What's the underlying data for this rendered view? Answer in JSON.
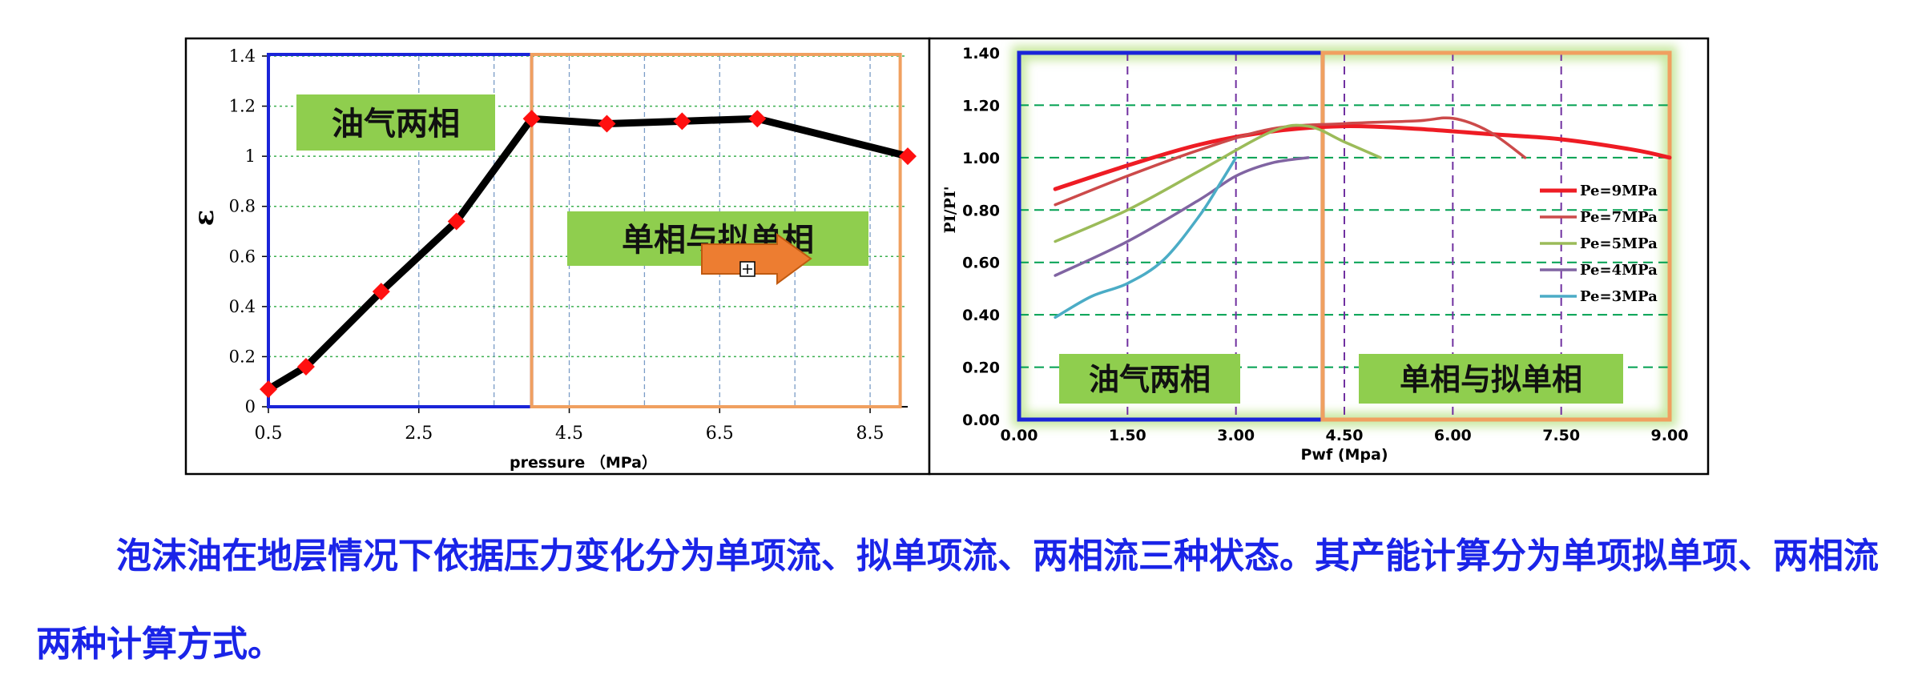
{
  "caption": "泡沫油在地层情况下依据压力变化分为单项流、拟单项流、两相流三种状态。其产能计算分为单项拟单项、两相流两种计算方式。",
  "chart_data": [
    {
      "type": "line",
      "title": "",
      "xlabel": "pressure （MPa）",
      "ylabel": "ε",
      "xlim": [
        0.5,
        9.0
      ],
      "ylim": [
        0,
        1.4
      ],
      "xticks": [
        "0.5",
        "2.5",
        "4.5",
        "6.5",
        "8.5"
      ],
      "yticks": [
        "0",
        "0.2",
        "0.4",
        "0.6",
        "0.8",
        "1",
        "1.2",
        "1.4"
      ],
      "grid": true,
      "series": [
        {
          "x": [
            0.5,
            1.0,
            2.0,
            3.0,
            4.0,
            5.0,
            6.0,
            7.0,
            9.0
          ],
          "y": [
            0.07,
            0.16,
            0.46,
            0.74,
            1.15,
            1.13,
            1.14,
            1.15,
            1.0
          ]
        }
      ],
      "regions": [
        {
          "label": "油气两相",
          "x_from": 0.5,
          "x_to": 4.0,
          "color": "#1a24d8"
        },
        {
          "label": "单相与拟单相",
          "x_from": 4.0,
          "x_to": 8.9,
          "color": "#f0a060"
        }
      ],
      "colors": {
        "line": "#000000",
        "marker": "#ff1010",
        "label_bg": "#8fce4e"
      },
      "arrow_icon": "right-arrow-icon"
    },
    {
      "type": "line",
      "title": "",
      "xlabel": "Pwf (Mpa)",
      "ylabel": "PI/PI'",
      "xlim": [
        0,
        9.0
      ],
      "ylim": [
        0,
        1.4
      ],
      "xticks": [
        "0.00",
        "1.50",
        "3.00",
        "4.50",
        "6.00",
        "7.50",
        "9.00"
      ],
      "yticks": [
        "0.00",
        "0.20",
        "0.40",
        "0.60",
        "0.80",
        "1.00",
        "1.20",
        "1.40"
      ],
      "grid": true,
      "legend": "right",
      "series": [
        {
          "name": "Pe=9MPa",
          "color": "#ee1c24",
          "x": [
            0.5,
            1.5,
            2.5,
            3.5,
            4.5,
            5.5,
            6.5,
            7.5,
            8.5,
            9.0
          ],
          "y": [
            0.88,
            0.97,
            1.05,
            1.1,
            1.12,
            1.11,
            1.09,
            1.07,
            1.03,
            1.0
          ]
        },
        {
          "name": "Pe=7MPa",
          "color": "#cc4a4a",
          "x": [
            0.5,
            1.5,
            2.5,
            3.5,
            4.5,
            5.5,
            6.0,
            6.5,
            7.0
          ],
          "y": [
            0.82,
            0.93,
            1.03,
            1.11,
            1.13,
            1.14,
            1.15,
            1.1,
            1.0
          ]
        },
        {
          "name": "Pe=5MPa",
          "color": "#9bbb59",
          "x": [
            0.5,
            1.5,
            2.5,
            3.5,
            4.0,
            4.5,
            5.0
          ],
          "y": [
            0.68,
            0.8,
            0.95,
            1.1,
            1.12,
            1.06,
            1.0
          ]
        },
        {
          "name": "Pe=4MPa",
          "color": "#8064a2",
          "x": [
            0.5,
            1.5,
            2.5,
            3.0,
            3.5,
            4.0
          ],
          "y": [
            0.55,
            0.68,
            0.84,
            0.93,
            0.98,
            1.0
          ]
        },
        {
          "name": "Pe=3MPa",
          "color": "#4bacc6",
          "x": [
            0.5,
            1.0,
            1.5,
            2.0,
            2.5,
            2.8,
            3.0
          ],
          "y": [
            0.39,
            0.47,
            0.52,
            0.61,
            0.78,
            0.91,
            1.0
          ]
        }
      ],
      "vlines": [
        1.5,
        3.0,
        4.5,
        6.0,
        7.5
      ],
      "regions": [
        {
          "label": "油气两相",
          "x_from": 0.0,
          "x_to": 4.2,
          "color": "#1a24d8"
        },
        {
          "label": "单相与拟单相",
          "x_from": 4.2,
          "x_to": 9.0,
          "color": "#f0a060"
        }
      ],
      "colors": {
        "hgrid": "#00a050",
        "vline": "#7030a0",
        "label_bg": "#8fce4e",
        "glow": "#c8e8a0"
      }
    }
  ]
}
